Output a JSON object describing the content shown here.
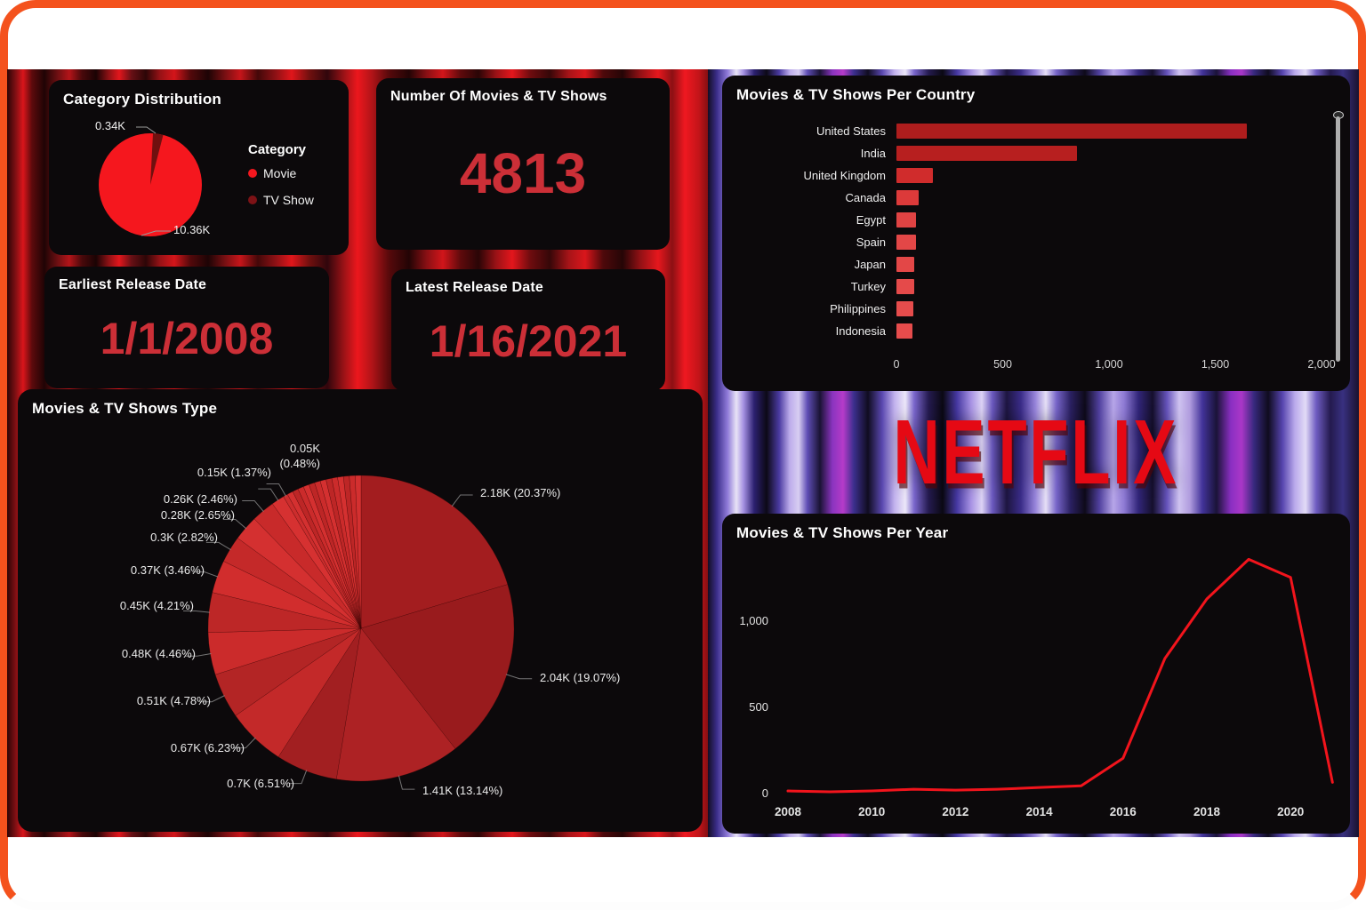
{
  "window": {
    "frame_color": "#f4521d",
    "inner_bg": "#ffffff"
  },
  "kpi": {
    "count": {
      "title": "Number Of Movies & TV Shows",
      "value": "4813"
    },
    "earliest": {
      "title": "Earliest Release Date",
      "value": "1/1/2008"
    },
    "latest": {
      "title": "Latest Release Date",
      "value": "1/16/2021"
    }
  },
  "netflix_logo_text": "NETFLIX",
  "accent_red": "#e50914",
  "chart_data": [
    {
      "type": "pie",
      "title": "Category Distribution",
      "legend_title": "Category",
      "legend_position": "right",
      "series": [
        {
          "name": "Movie",
          "display": "10.36K",
          "value": 10360,
          "color": "#f5171e"
        },
        {
          "name": "TV Show",
          "display": "0.34K",
          "value": 340,
          "color": "#70100f"
        }
      ]
    },
    {
      "type": "pie",
      "title": "Movies & TV Shows Type",
      "slices": [
        {
          "display": "2.18K (20.37%)",
          "value_k": 2.18,
          "pct": 20.37,
          "color": "#a31d1f"
        },
        {
          "display": "2.04K (19.07%)",
          "value_k": 2.04,
          "pct": 19.07,
          "color": "#991b1d"
        },
        {
          "display": "1.41K (13.14%)",
          "value_k": 1.41,
          "pct": 13.14,
          "color": "#ad2224"
        },
        {
          "display": "0.7K (6.51%)",
          "value_k": 0.7,
          "pct": 6.51,
          "color": "#a21f21"
        },
        {
          "display": "0.67K (6.23%)",
          "value_k": 0.67,
          "pct": 6.23,
          "color": "#c32929"
        },
        {
          "display": "0.51K (4.78%)",
          "value_k": 0.51,
          "pct": 4.78,
          "color": "#b32525"
        },
        {
          "display": "0.48K (4.46%)",
          "value_k": 0.48,
          "pct": 4.46,
          "color": "#cb2b2b"
        },
        {
          "display": "0.45K (4.21%)",
          "value_k": 0.45,
          "pct": 4.21,
          "color": "#bd2727"
        },
        {
          "display": "0.37K (3.46%)",
          "value_k": 0.37,
          "pct": 3.46,
          "color": "#d12d2d"
        },
        {
          "display": "0.3K (2.82%)",
          "value_k": 0.3,
          "pct": 2.82,
          "color": "#c42929"
        },
        {
          "display": "0.28K (2.65%)",
          "value_k": 0.28,
          "pct": 2.65,
          "color": "#d43030"
        },
        {
          "display": "0.26K (2.46%)",
          "value_k": 0.26,
          "pct": 2.46,
          "color": "#c82a2a"
        },
        {
          "display": "0.15K (1.37%)",
          "value_k": 0.15,
          "pct": 1.37,
          "color": "#d63131"
        },
        {
          "display": "0.05K (0.48%)",
          "value_k": 0.05,
          "pct": 0.48,
          "color": "#cc2d2d"
        }
      ],
      "unlabeled_fan": {
        "total_pct": 7.99,
        "approx_count": 13
      }
    },
    {
      "type": "bar",
      "orientation": "horizontal",
      "title": "Movies & TV Shows Per Country",
      "categories": [
        "United States",
        "India",
        "United Kingdom",
        "Canada",
        "Egypt",
        "Spain",
        "Japan",
        "Turkey",
        "Philippines",
        "Indonesia"
      ],
      "values": [
        1650,
        850,
        170,
        105,
        90,
        90,
        85,
        85,
        80,
        75
      ],
      "bar_colors": [
        "#ae1d1d",
        "#b71f1f",
        "#d02c2c",
        "#dc3a3a",
        "#e04343",
        "#e34747",
        "#e34747",
        "#e54a4a",
        "#e64c4c",
        "#e64c4c"
      ],
      "xlim": [
        0,
        2000
      ],
      "x_ticks": [
        "0",
        "500",
        "1,000",
        "1,500",
        "2,000"
      ],
      "grid": false,
      "has_scrollbar": true
    },
    {
      "type": "line",
      "title": "Movies & TV Shows Per Year",
      "x": [
        2008,
        2009,
        2010,
        2011,
        2012,
        2013,
        2014,
        2015,
        2016,
        2017,
        2018,
        2019,
        2020,
        2021
      ],
      "y": [
        10,
        5,
        10,
        20,
        15,
        20,
        30,
        40,
        200,
        780,
        1125,
        1355,
        1250,
        60
      ],
      "x_ticks": [
        "2008",
        "2010",
        "2012",
        "2014",
        "2016",
        "2018",
        "2020"
      ],
      "y_ticks": [
        "0",
        "500",
        "1,000"
      ],
      "ylim": [
        0,
        1400
      ],
      "line_color": "#f2141c",
      "grid": false
    }
  ]
}
